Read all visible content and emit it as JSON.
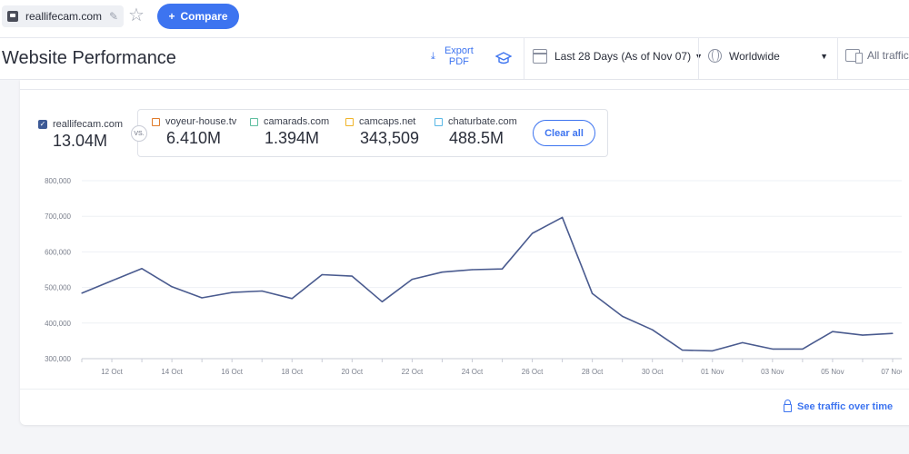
{
  "topbar": {
    "site_name": "reallifecam.com",
    "compare_label": "Compare",
    "compare_prefix": "+"
  },
  "header": {
    "title": "Website Performance",
    "export_label": "Export\nPDF",
    "date_range": "Last 28 Days (As of Nov 07)",
    "geo": "Worldwide",
    "traffic": "All traffic"
  },
  "primary": {
    "name": "reallifecam.com",
    "value": "13.04M",
    "color": "#3d5a96"
  },
  "vs_label": "VS.",
  "competitors": [
    {
      "name": "voyeur-house.tv",
      "value": "6.410M",
      "color": "#e07b2a"
    },
    {
      "name": "camarads.com",
      "value": "1.394M",
      "color": "#5fbfa0"
    },
    {
      "name": "camcaps.net",
      "value": "343,509",
      "color": "#f0b429"
    },
    {
      "name": "chaturbate.com",
      "value": "488.5M",
      "color": "#5ab8e6"
    }
  ],
  "clear_all_label": "Clear all",
  "see_traffic_label": "See traffic over time",
  "chart_data": {
    "type": "line",
    "series": [
      {
        "name": "reallifecam.com",
        "color": "#4a5b8f",
        "values": [
          484000,
          519000,
          553000,
          502000,
          471000,
          486000,
          490000,
          469000,
          536000,
          532000,
          460000,
          523000,
          543000,
          550000,
          552000,
          652000,
          697000,
          483000,
          419000,
          381000,
          324000,
          322000,
          345000,
          327000,
          327000,
          376000,
          366000,
          371000
        ]
      }
    ],
    "x": [
      "11 Oct",
      "12 Oct",
      "13 Oct",
      "14 Oct",
      "15 Oct",
      "16 Oct",
      "17 Oct",
      "18 Oct",
      "19 Oct",
      "20 Oct",
      "21 Oct",
      "22 Oct",
      "23 Oct",
      "24 Oct",
      "25 Oct",
      "26 Oct",
      "27 Oct",
      "28 Oct",
      "29 Oct",
      "30 Oct",
      "31 Oct",
      "01 Nov",
      "02 Nov",
      "03 Nov",
      "04 Nov",
      "05 Nov",
      "06 Nov",
      "07 Nov"
    ],
    "xticks": [
      "12 Oct",
      "14 Oct",
      "16 Oct",
      "18 Oct",
      "20 Oct",
      "22 Oct",
      "24 Oct",
      "26 Oct",
      "28 Oct",
      "30 Oct",
      "01 Nov",
      "03 Nov",
      "05 Nov",
      "07 Nov"
    ],
    "yticks": [
      "300,000",
      "400,000",
      "500,000",
      "600,000",
      "700,000",
      "800,000"
    ],
    "ylim": [
      300000,
      800000
    ],
    "grid": true
  }
}
